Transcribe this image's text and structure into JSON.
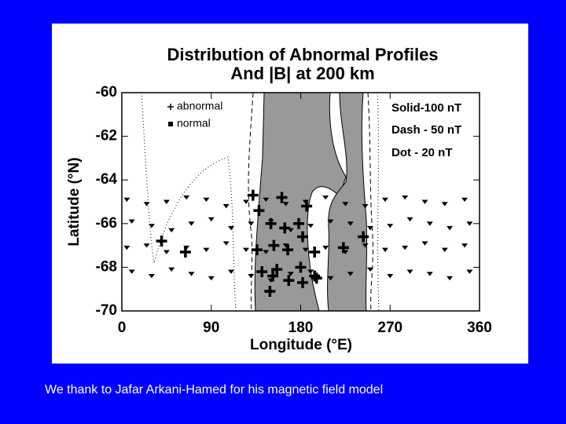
{
  "chart_data": {
    "type": "scatter",
    "title": [
      "Distribution of Abnormal Profiles",
      "And |B| at 200 km"
    ],
    "xlabel": "Longitude (°E)",
    "ylabel": "Latitude (°N)",
    "xlim": [
      0,
      360
    ],
    "ylim": [
      -70,
      -60
    ],
    "xticks": [
      0,
      90,
      180,
      270,
      360
    ],
    "yticks": [
      -60,
      -62,
      -64,
      -66,
      -68,
      -70
    ],
    "annotations": [
      "Solid-100 nT",
      "Dash - 50 nT",
      "Dot  - 20 nT"
    ],
    "legend": "upper left",
    "series": [
      {
        "name": "abnormal",
        "color": "#000000",
        "marker": "plus",
        "x": [
          132,
          161,
          138,
          186,
          150,
          164,
          178,
          182,
          40,
          64,
          136,
          153,
          167,
          194,
          223,
          243,
          141,
          156,
          180,
          152,
          168,
          182,
          196,
          149,
          194
        ],
        "y": [
          -64.7,
          -64.8,
          -65.4,
          -65.2,
          -66.0,
          -66.2,
          -66.0,
          -66.6,
          -66.8,
          -67.3,
          -67.2,
          -67.0,
          -67.2,
          -67.3,
          -67.1,
          -66.6,
          -68.2,
          -68.1,
          -68.0,
          -68.4,
          -68.6,
          -68.7,
          -68.5,
          -69.1,
          -68.4
        ]
      },
      {
        "name": "normal",
        "color": "#000000",
        "marker": "dot",
        "x": [
          5,
          25,
          45,
          65,
          85,
          105,
          125,
          145,
          165,
          185,
          205,
          225,
          245,
          265,
          285,
          305,
          325,
          345,
          10,
          30,
          50,
          70,
          90,
          110,
          130,
          150,
          170,
          190,
          210,
          230,
          250,
          270,
          290,
          310,
          330,
          350,
          5,
          25,
          45,
          65,
          85,
          105,
          125,
          145,
          165,
          185,
          205,
          225,
          245,
          265,
          285,
          305,
          325,
          345,
          10,
          30,
          50,
          70,
          90,
          110,
          130,
          150,
          170,
          190,
          210,
          230,
          250,
          270,
          290,
          310,
          330,
          350
        ],
        "y": [
          -64.9,
          -65.1,
          -65.0,
          -64.8,
          -64.9,
          -65.2,
          -65.0,
          -64.9,
          -65.1,
          -65.0,
          -64.8,
          -65.1,
          -65.2,
          -64.9,
          -64.8,
          -65.0,
          -65.1,
          -64.9,
          -65.9,
          -66.1,
          -66.3,
          -66.0,
          -65.8,
          -66.2,
          -66.0,
          -65.9,
          -66.3,
          -66.1,
          -65.9,
          -66.0,
          -66.2,
          -66.1,
          -65.8,
          -66.0,
          -66.2,
          -66.0,
          -67.1,
          -67.0,
          -67.3,
          -67.1,
          -67.2,
          -66.9,
          -67.2,
          -67.3,
          -67.0,
          -67.2,
          -67.1,
          -67.3,
          -67.0,
          -67.2,
          -67.1,
          -66.9,
          -67.2,
          -67.0,
          -68.2,
          -68.4,
          -68.1,
          -68.3,
          -68.5,
          -68.2,
          -68.4,
          -68.6,
          -68.3,
          -68.2,
          -68.5,
          -68.3,
          -68.1,
          -68.4,
          -68.2,
          -68.3,
          -68.5,
          -68.2
        ]
      }
    ]
  },
  "caption": "We thank to Jafar Arkani-Hamed for his magnetic field model"
}
